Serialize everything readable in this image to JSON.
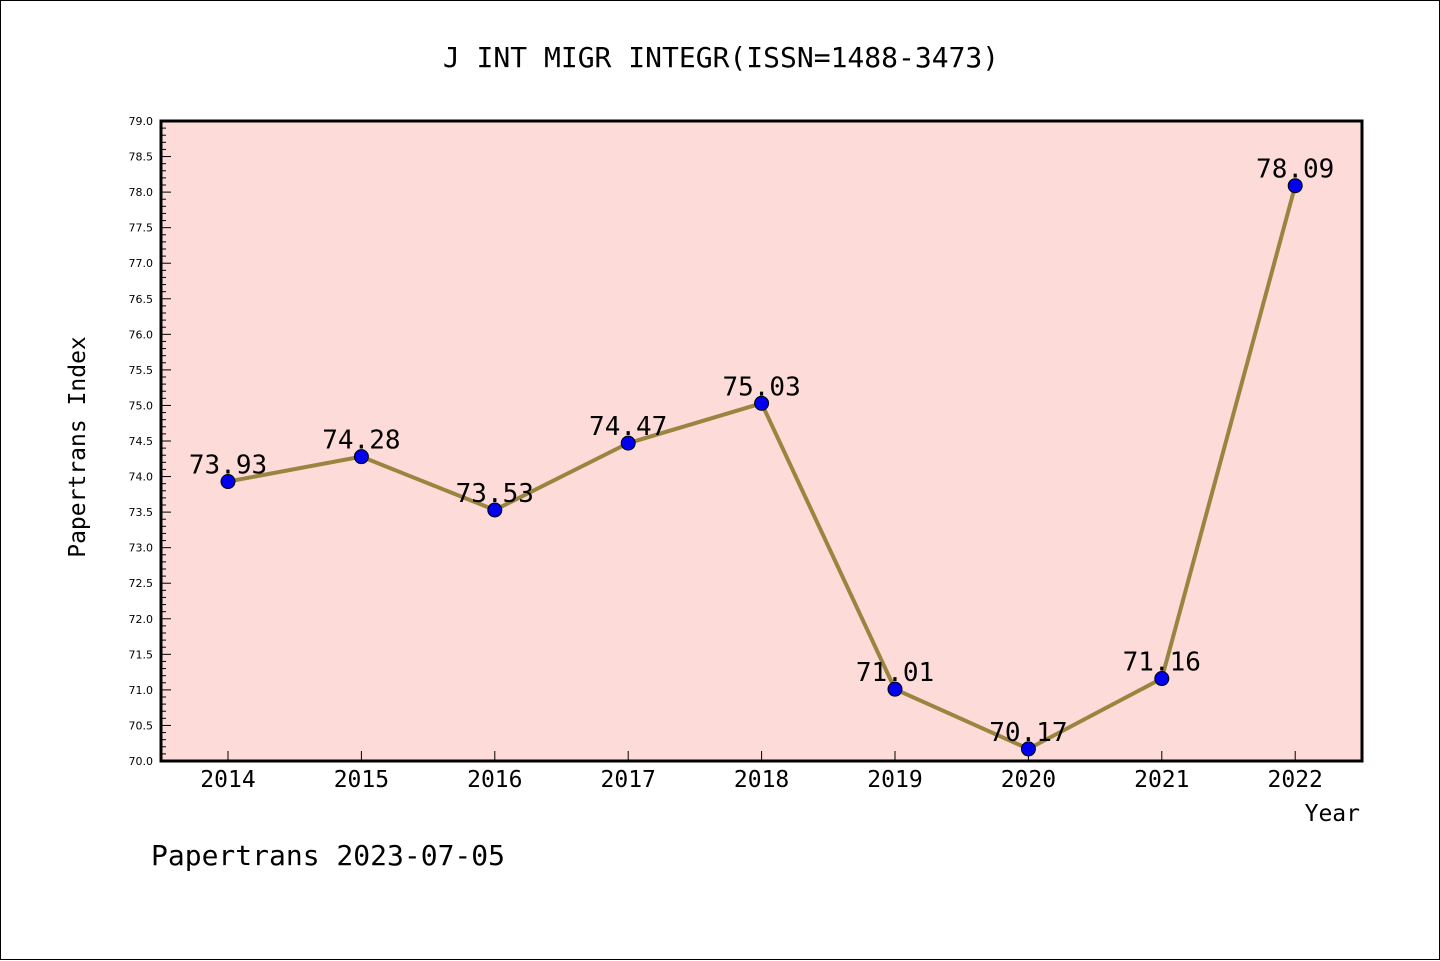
{
  "chart_data": {
    "type": "line",
    "title": "J INT MIGR INTEGR(ISSN=1488-3473)",
    "xlabel": "Year",
    "ylabel": "Papertrans Index",
    "categories": [
      "2014",
      "2015",
      "2016",
      "2017",
      "2018",
      "2019",
      "2020",
      "2021",
      "2022"
    ],
    "series": [
      {
        "values": [
          73.93,
          74.28,
          73.53,
          74.47,
          75.03,
          71.01,
          70.17,
          71.16,
          78.09
        ],
        "labels": [
          "73.93",
          "74.28",
          "73.53",
          "74.47",
          "75.03",
          "71.01",
          "70.17",
          "71.16",
          "78.09"
        ]
      }
    ],
    "ylim": [
      70.0,
      79.0
    ],
    "yticks": [
      "70.0",
      "70.5",
      "71.0",
      "71.5",
      "72.0",
      "72.5",
      "73.0",
      "73.5",
      "74.0",
      "74.5",
      "75.0",
      "75.5",
      "76.0",
      "76.5",
      "77.0",
      "77.5",
      "78.0",
      "78.5",
      "79.0"
    ],
    "grid": false,
    "colors": {
      "plot_background": "#fddbd8",
      "line": "#9a8540",
      "marker": "#0000ee"
    }
  },
  "footer": "Papertrans 2023-07-05"
}
